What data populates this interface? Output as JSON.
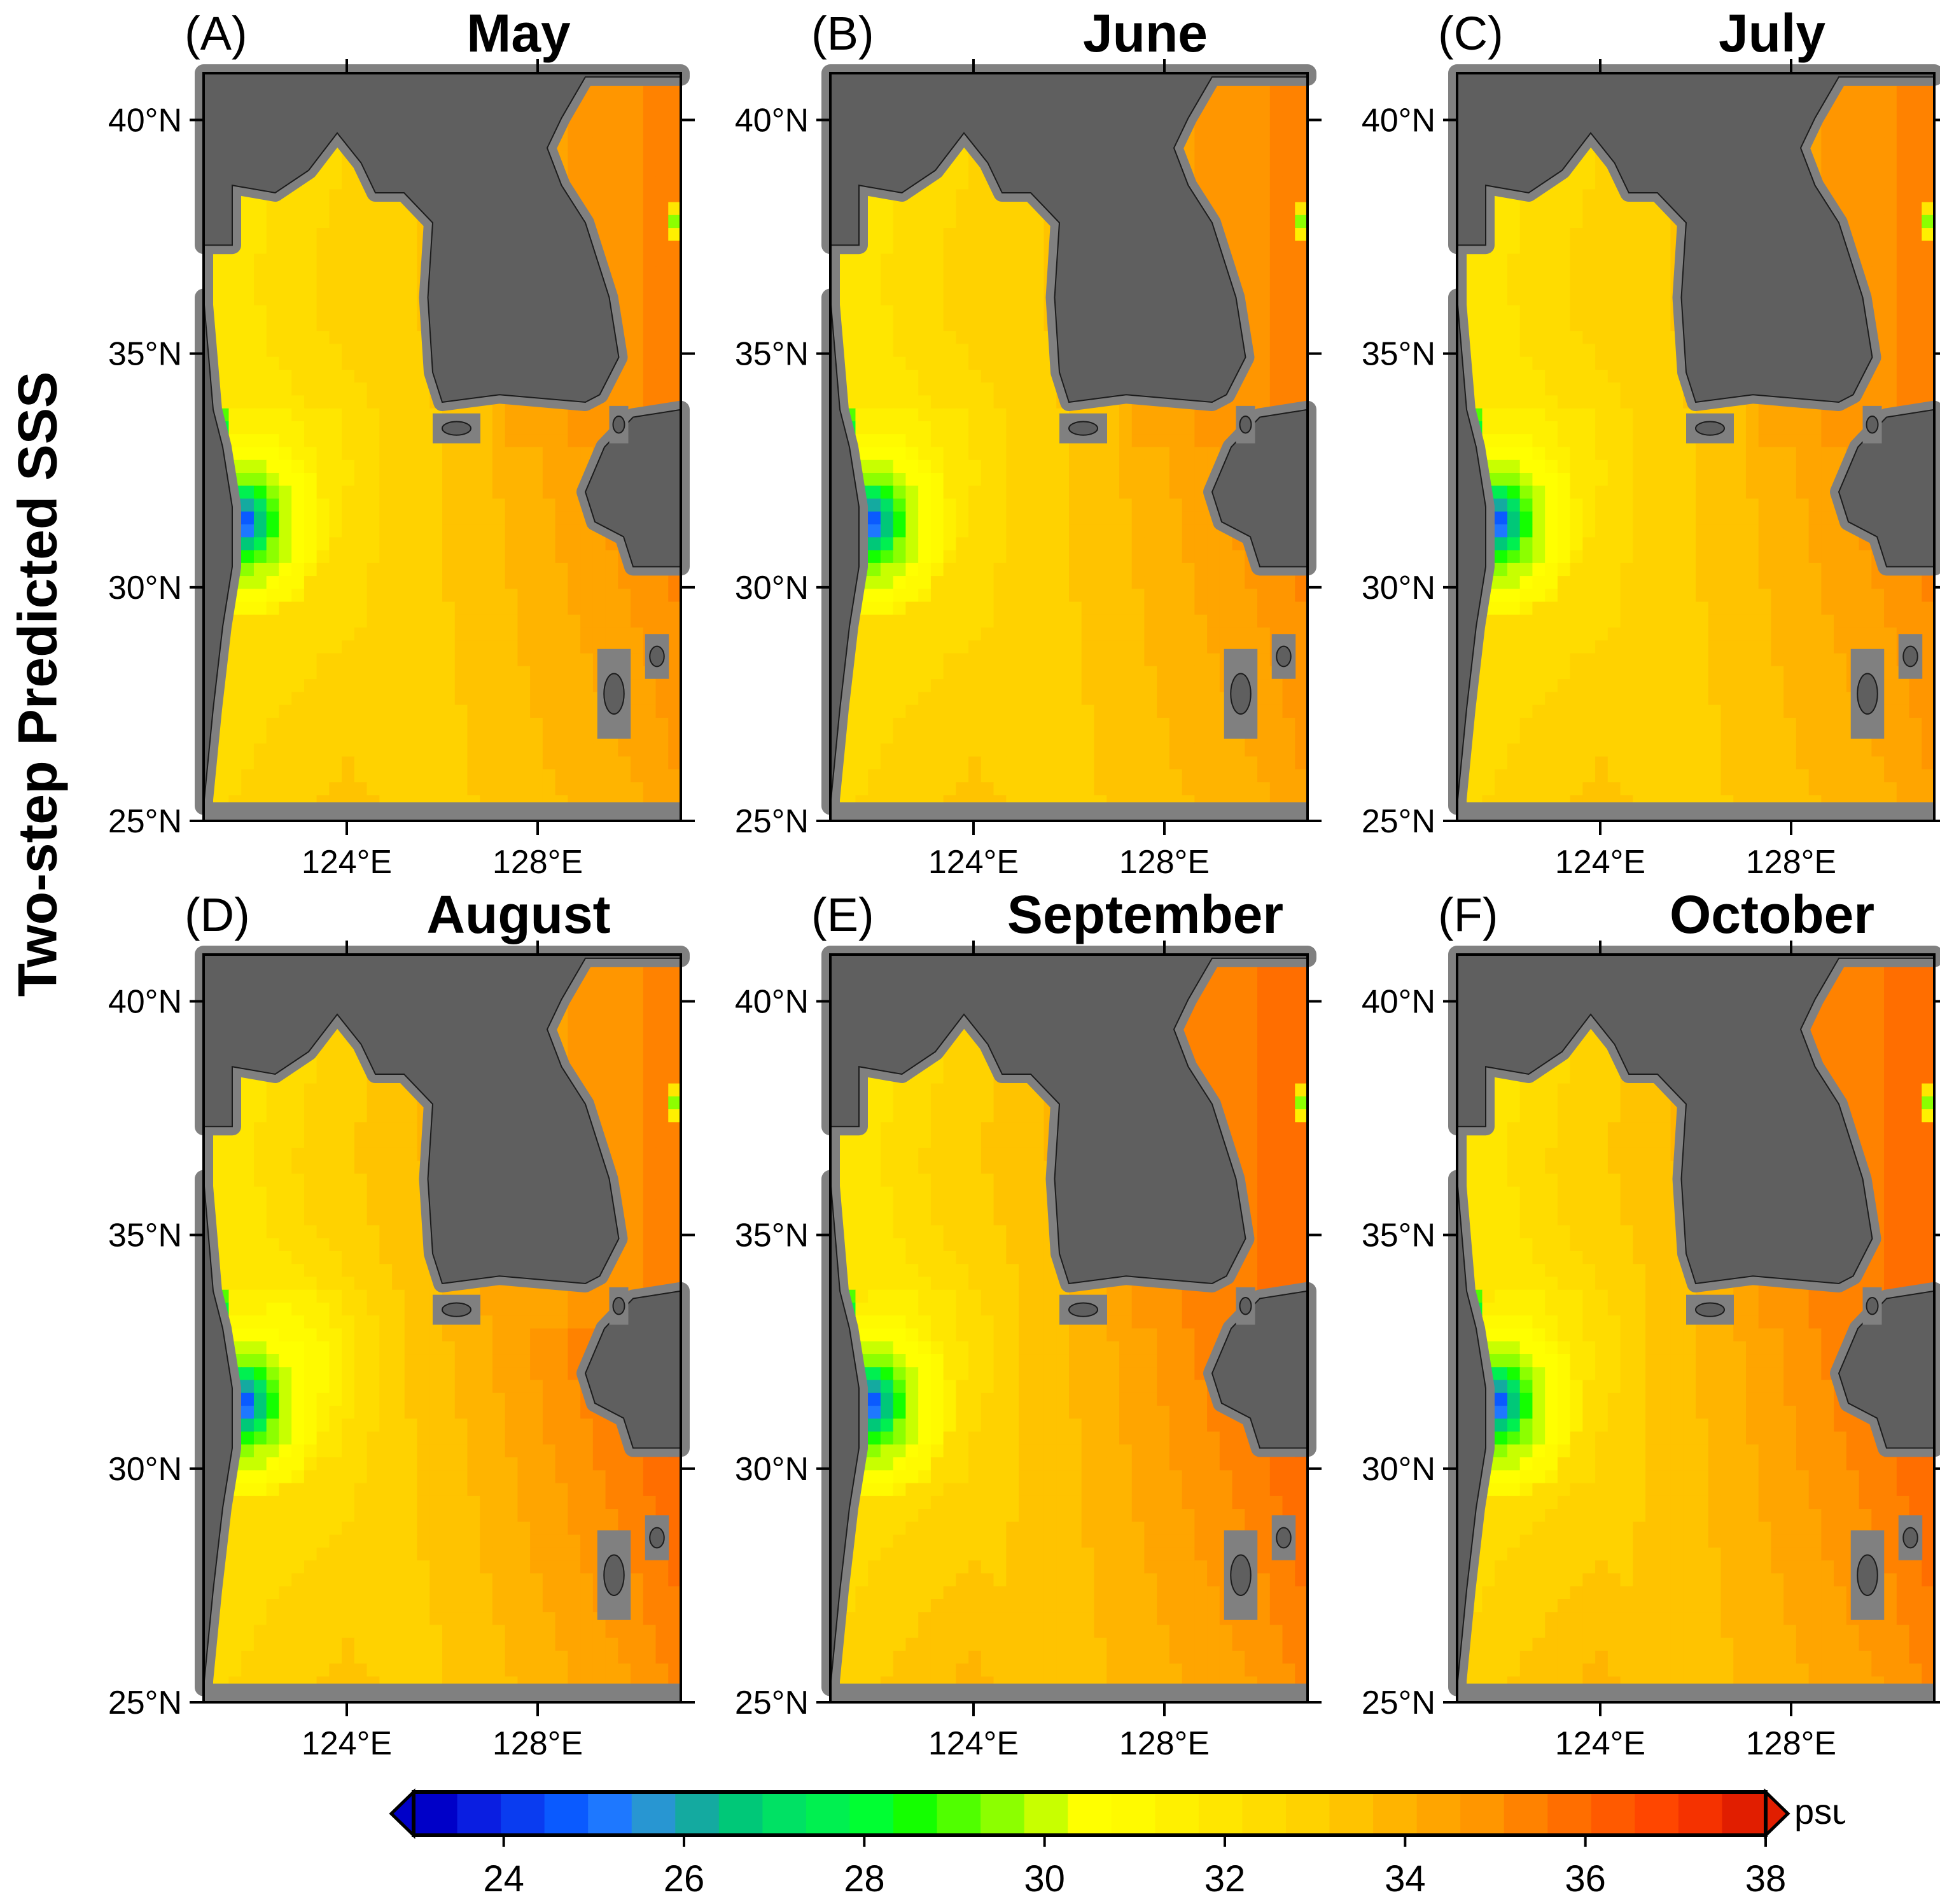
{
  "figure": {
    "ylabel": "Two-step Predicted SSS",
    "colors": {
      "land": "#5f5f5f",
      "masked_sea": "#808080",
      "frame": "#000000",
      "coast": "#1c1c1c"
    }
  },
  "chart_data": {
    "type": "heatmap",
    "variable": "Sea surface salinity",
    "ylabel": "Two-step Predicted SSS",
    "lat_ticks": [
      "40°N",
      "35°N",
      "30°N",
      "25°N"
    ],
    "lon_ticks": [
      "124°E",
      "128°E"
    ],
    "lat_range": [
      25,
      41
    ],
    "lon_range": [
      121,
      131
    ],
    "panels": [
      {
        "letter": "(A)",
        "month": "May"
      },
      {
        "letter": "(B)",
        "month": "June"
      },
      {
        "letter": "(C)",
        "month": "July"
      },
      {
        "letter": "(D)",
        "month": "August"
      },
      {
        "letter": "(E)",
        "month": "September"
      },
      {
        "letter": "(F)",
        "month": "October"
      }
    ],
    "colorbar": {
      "unit": "psu",
      "min": 23,
      "max": 38,
      "step": 0.5,
      "ticks": [
        "24",
        "26",
        "28",
        "30",
        "32",
        "34",
        "36",
        "38"
      ],
      "tick_values": [
        24,
        26,
        28,
        30,
        32,
        34,
        36,
        38
      ],
      "extend": "both",
      "colors": [
        "#0000c8",
        "#0a1ee1",
        "#0a3cf0",
        "#0a5aff",
        "#1e78ff",
        "#2896d2",
        "#14aaa0",
        "#00c878",
        "#00e164",
        "#00f050",
        "#00ff32",
        "#14ff00",
        "#50ff00",
        "#8cff00",
        "#c8ff00",
        "#ffff00",
        "#fffa00",
        "#fff000",
        "#ffe600",
        "#ffdc00",
        "#ffd200",
        "#ffc300",
        "#ffb400",
        "#ffa500",
        "#ff9600",
        "#ff8200",
        "#ff6e00",
        "#ff5a00",
        "#ff4600",
        "#f53200",
        "#e11e00"
      ]
    }
  }
}
